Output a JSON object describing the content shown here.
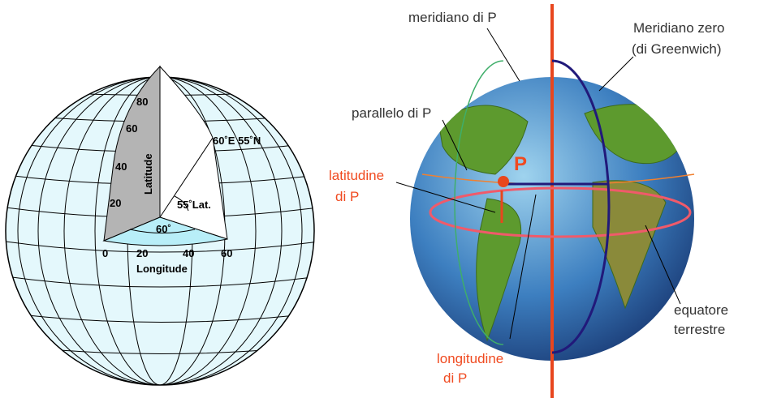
{
  "left_globe": {
    "latitude_ticks": [
      "80",
      "60",
      "40",
      "20"
    ],
    "latitude_label": "Latitude",
    "point_label": "60˚E 55˚N",
    "angle_label": "55˚Lat.",
    "longitude_angle": "60˚",
    "longitude_ticks": [
      "0",
      "20",
      "40",
      "60"
    ],
    "longitude_label": "Longitude"
  },
  "right_globe": {
    "meridian_p": "meridiano di P",
    "greenwich": [
      "Meridiano zero",
      "(di Greenwich)"
    ],
    "parallel_p": "parallelo di P",
    "latitude": [
      "latitudine",
      "di P"
    ],
    "point": "P",
    "longitude": [
      "longitudine",
      "di P"
    ],
    "equator": [
      "equatore",
      "terrestre"
    ]
  }
}
